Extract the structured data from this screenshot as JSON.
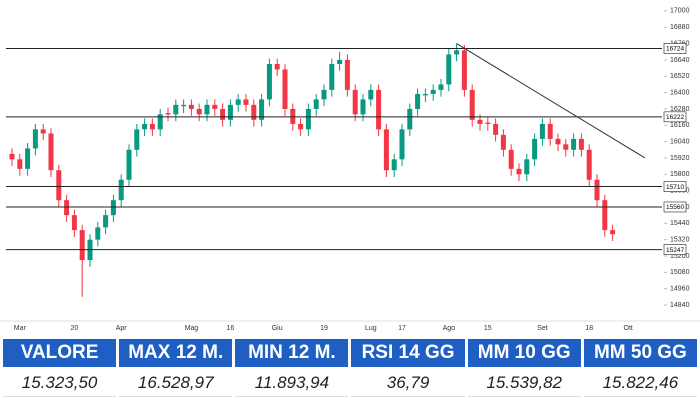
{
  "chart_data": {
    "type": "candlestick",
    "categories": [
      null,
      "Mar",
      null,
      null,
      null,
      null,
      null,
      null,
      "20",
      null,
      null,
      null,
      null,
      null,
      "Apr",
      null,
      null,
      null,
      null,
      null,
      null,
      null,
      null,
      "Mag",
      null,
      null,
      null,
      null,
      "16",
      null,
      null,
      null,
      null,
      null,
      "Giu",
      null,
      null,
      null,
      null,
      null,
      "19",
      null,
      null,
      null,
      null,
      null,
      "Lug",
      null,
      null,
      null,
      "17",
      null,
      null,
      null,
      null,
      null,
      "Ago",
      null,
      null,
      null,
      null,
      "15",
      null,
      null,
      null,
      null,
      null,
      null,
      "Set",
      null,
      null,
      null,
      null,
      null,
      "18",
      null,
      null,
      null,
      null,
      "Ott"
    ],
    "ohlc": [
      [
        15950,
        15990,
        15860,
        15910
      ],
      [
        15910,
        15950,
        15790,
        15840
      ],
      [
        15840,
        16030,
        15790,
        15990
      ],
      [
        15990,
        16170,
        15940,
        16130
      ],
      [
        16130,
        16170,
        16050,
        16100
      ],
      [
        16100,
        16140,
        15780,
        15830
      ],
      [
        15830,
        15870,
        15560,
        15610
      ],
      [
        15610,
        15650,
        15450,
        15500
      ],
      [
        15500,
        15540,
        15340,
        15390
      ],
      [
        15390,
        15430,
        14900,
        15170
      ],
      [
        15170,
        15360,
        15120,
        15320
      ],
      [
        15320,
        15450,
        15270,
        15410
      ],
      [
        15410,
        15540,
        15360,
        15500
      ],
      [
        15500,
        15650,
        15450,
        15610
      ],
      [
        15610,
        15800,
        15560,
        15760
      ],
      [
        15760,
        16020,
        15710,
        15980
      ],
      [
        15980,
        16170,
        15930,
        16130
      ],
      [
        16130,
        16210,
        16080,
        16170
      ],
      [
        16170,
        16210,
        16080,
        16130
      ],
      [
        16130,
        16280,
        16080,
        16240
      ],
      [
        16250,
        16290,
        16190,
        16240
      ],
      [
        16240,
        16350,
        16190,
        16310
      ],
      [
        16300,
        16350,
        16250,
        16310
      ],
      [
        16310,
        16350,
        16230,
        16280
      ],
      [
        16280,
        16320,
        16190,
        16240
      ],
      [
        16240,
        16350,
        16190,
        16310
      ],
      [
        16310,
        16350,
        16230,
        16280
      ],
      [
        16280,
        16320,
        16150,
        16200
      ],
      [
        16200,
        16350,
        16150,
        16310
      ],
      [
        16310,
        16390,
        16260,
        16350
      ],
      [
        16350,
        16390,
        16260,
        16310
      ],
      [
        16310,
        16350,
        16150,
        16200
      ],
      [
        16200,
        16390,
        16150,
        16350
      ],
      [
        16350,
        16650,
        16300,
        16610
      ],
      [
        16610,
        16650,
        16520,
        16570
      ],
      [
        16570,
        16610,
        16230,
        16280
      ],
      [
        16280,
        16320,
        16120,
        16170
      ],
      [
        16170,
        16210,
        16080,
        16130
      ],
      [
        16130,
        16320,
        16080,
        16280
      ],
      [
        16280,
        16390,
        16230,
        16350
      ],
      [
        16350,
        16460,
        16300,
        16420
      ],
      [
        16420,
        16650,
        16370,
        16610
      ],
      [
        16610,
        16700,
        16560,
        16640
      ],
      [
        16640,
        16680,
        16370,
        16420
      ],
      [
        16420,
        16460,
        16190,
        16240
      ],
      [
        16240,
        16390,
        16190,
        16350
      ],
      [
        16350,
        16460,
        16300,
        16420
      ],
      [
        16420,
        16460,
        16080,
        16130
      ],
      [
        16130,
        16170,
        15780,
        15830
      ],
      [
        15830,
        15950,
        15780,
        15910
      ],
      [
        15910,
        16170,
        15860,
        16130
      ],
      [
        16130,
        16320,
        16080,
        16280
      ],
      [
        16280,
        16430,
        16230,
        16390
      ],
      [
        16380,
        16430,
        16330,
        16390
      ],
      [
        16390,
        16460,
        16340,
        16420
      ],
      [
        16420,
        16500,
        16370,
        16460
      ],
      [
        16460,
        16720,
        16410,
        16680
      ],
      [
        16680,
        16760,
        16630,
        16710
      ],
      [
        16710,
        16750,
        16370,
        16420
      ],
      [
        16420,
        16460,
        16150,
        16200
      ],
      [
        16200,
        16240,
        16120,
        16170
      ],
      [
        16180,
        16220,
        16120,
        16170
      ],
      [
        16170,
        16210,
        16040,
        16090
      ],
      [
        16090,
        16130,
        15930,
        15980
      ],
      [
        15980,
        16020,
        15790,
        15840
      ],
      [
        15840,
        15880,
        15750,
        15800
      ],
      [
        15800,
        15950,
        15750,
        15910
      ],
      [
        15910,
        16100,
        15860,
        16060
      ],
      [
        16060,
        16210,
        16010,
        16170
      ],
      [
        16170,
        16210,
        16010,
        16060
      ],
      [
        16060,
        16100,
        15970,
        16020
      ],
      [
        16020,
        16060,
        15930,
        15980
      ],
      [
        15980,
        16100,
        15930,
        16060
      ],
      [
        16060,
        16100,
        15930,
        15980
      ],
      [
        15980,
        16020,
        15710,
        15760
      ],
      [
        15760,
        15800,
        15560,
        15610
      ],
      [
        15610,
        15650,
        15340,
        15390
      ],
      [
        15390,
        15430,
        15310,
        15360
      ],
      null,
      null
    ],
    "up_color": "#089981",
    "down_color": "#f23645",
    "ylim": [
      14730,
      17080
    ],
    "yticks": [
      17000,
      16880,
      16760,
      16640,
      16520,
      16400,
      16280,
      16160,
      16040,
      15920,
      15800,
      15680,
      15560,
      15440,
      15320,
      15200,
      15080,
      14960,
      14840
    ],
    "levels": [
      16724,
      16222,
      15710,
      15560,
      15247
    ],
    "trendline": [
      16760,
      15920
    ]
  },
  "table": {
    "header": [
      "VALORE",
      "MAX 12 M.",
      "MIN 12 M.",
      "RSI 14 GG",
      "MM 10 GG",
      "MM 50 GG"
    ],
    "row": [
      "15.323,50",
      "16.528,97",
      "11.893,94",
      "36,79",
      "15.539,82",
      "15.822,46"
    ]
  }
}
